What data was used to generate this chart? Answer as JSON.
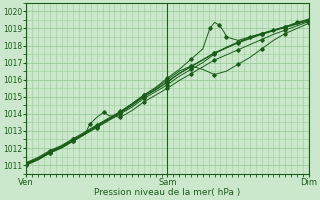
{
  "xlabel": "Pression niveau de la mer( hPa )",
  "xtick_labels": [
    "Ven",
    "Sam",
    "Dim"
  ],
  "ylim": [
    1010.5,
    1020.5
  ],
  "yticks": [
    1011,
    1012,
    1013,
    1014,
    1015,
    1016,
    1017,
    1018,
    1019,
    1020
  ],
  "bg_color": "#cce8cc",
  "grid_color": "#99cc99",
  "line_color": "#1a5c1a",
  "lines": [
    {
      "x": [
        0.0,
        0.083,
        0.167,
        0.25,
        0.333,
        0.417,
        0.5,
        0.583,
        0.667,
        0.75,
        0.833,
        0.917,
        1.0,
        1.083,
        1.167,
        1.25,
        1.333,
        1.417,
        1.5,
        1.583,
        1.667,
        1.75,
        1.833,
        1.917,
        2.0
      ],
      "y": [
        1011.0,
        1011.3,
        1011.7,
        1012.0,
        1012.4,
        1012.8,
        1013.2,
        1013.6,
        1014.0,
        1014.4,
        1014.9,
        1015.3,
        1015.7,
        1016.2,
        1016.6,
        1017.0,
        1017.5,
        1017.9,
        1018.2,
        1018.5,
        1018.7,
        1018.9,
        1019.1,
        1019.3,
        1019.5
      ]
    },
    {
      "x": [
        0.0,
        0.083,
        0.167,
        0.25,
        0.333,
        0.417,
        0.5,
        0.583,
        0.667,
        0.75,
        0.833,
        0.917,
        1.0,
        1.083,
        1.167,
        1.25,
        1.333,
        1.417,
        1.5,
        1.583,
        1.667,
        1.75,
        1.833,
        1.917,
        2.0
      ],
      "y": [
        1011.1,
        1011.4,
        1011.8,
        1012.1,
        1012.5,
        1012.9,
        1013.3,
        1013.7,
        1014.1,
        1014.6,
        1015.1,
        1015.5,
        1016.0,
        1016.5,
        1016.8,
        1016.6,
        1016.3,
        1016.5,
        1016.9,
        1017.3,
        1017.8,
        1018.3,
        1018.7,
        1019.0,
        1019.3
      ]
    },
    {
      "x": [
        0.0,
        0.083,
        0.167,
        0.25,
        0.333,
        0.417,
        0.5,
        0.583,
        0.667,
        0.75,
        0.833,
        0.917,
        1.0,
        1.083,
        1.167,
        1.25,
        1.333,
        1.417,
        1.5,
        1.583,
        1.667,
        1.75,
        1.833,
        1.917,
        2.0
      ],
      "y": [
        1011.05,
        1011.35,
        1011.75,
        1012.05,
        1012.45,
        1012.85,
        1013.25,
        1013.65,
        1014.05,
        1014.5,
        1015.0,
        1015.4,
        1015.85,
        1016.35,
        1016.75,
        1017.15,
        1017.55,
        1017.85,
        1018.15,
        1018.4,
        1018.65,
        1018.85,
        1019.05,
        1019.25,
        1019.45
      ]
    },
    {
      "x": [
        0.0,
        0.083,
        0.167,
        0.25,
        0.333,
        0.417,
        0.5,
        0.583,
        0.667,
        0.75,
        0.833,
        0.917,
        1.0,
        1.083,
        1.167,
        1.25,
        1.3,
        1.333,
        1.367,
        1.4,
        1.417,
        1.5,
        1.583,
        1.667,
        1.75,
        1.833,
        1.917,
        2.0
      ],
      "y": [
        1011.15,
        1011.45,
        1011.85,
        1012.15,
        1012.55,
        1012.95,
        1013.35,
        1013.75,
        1014.15,
        1014.6,
        1015.1,
        1015.55,
        1016.1,
        1016.6,
        1017.2,
        1017.8,
        1019.0,
        1019.35,
        1019.2,
        1018.8,
        1018.5,
        1018.3,
        1018.5,
        1018.7,
        1018.9,
        1019.1,
        1019.35,
        1019.55
      ]
    },
    {
      "x": [
        0.0,
        0.083,
        0.167,
        0.25,
        0.333,
        0.417,
        0.5,
        0.583,
        0.667,
        0.75,
        0.833,
        0.917,
        1.0,
        1.083,
        1.167,
        1.25,
        1.333,
        1.417,
        1.5,
        1.583,
        1.667,
        1.75,
        1.833,
        1.917,
        2.0
      ],
      "y": [
        1011.08,
        1011.38,
        1011.78,
        1012.08,
        1012.48,
        1012.88,
        1013.28,
        1013.68,
        1014.08,
        1014.53,
        1015.03,
        1015.43,
        1015.88,
        1016.38,
        1016.78,
        1017.18,
        1017.58,
        1017.88,
        1018.18,
        1018.43,
        1018.68,
        1018.88,
        1019.08,
        1019.28,
        1019.48
      ]
    },
    {
      "x": [
        0.0,
        0.083,
        0.167,
        0.25,
        0.333,
        0.417,
        0.45,
        0.5,
        0.55,
        0.583,
        0.667,
        0.75,
        0.833,
        0.917,
        1.0,
        1.083,
        1.167,
        1.25,
        1.333,
        1.417,
        1.5,
        1.583,
        1.667,
        1.75,
        1.833,
        1.917,
        2.0
      ],
      "y": [
        1011.02,
        1011.32,
        1011.72,
        1012.02,
        1012.42,
        1012.82,
        1013.4,
        1013.8,
        1014.1,
        1013.9,
        1013.8,
        1014.2,
        1014.7,
        1015.1,
        1015.5,
        1015.95,
        1016.35,
        1016.75,
        1017.15,
        1017.45,
        1017.75,
        1018.05,
        1018.35,
        1018.65,
        1018.9,
        1019.15,
        1019.4
      ]
    }
  ]
}
